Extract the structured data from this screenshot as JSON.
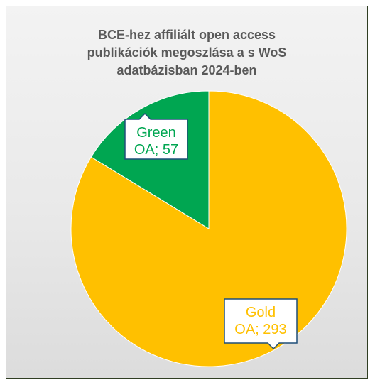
{
  "chart_data": {
    "type": "pie",
    "title_lines": [
      "BCE-hez affiliált open access",
      "publikációk megoszlása a s WoS",
      "adatbázisban 2024-ben"
    ],
    "slices": [
      {
        "label": "Gold OA",
        "value": 293,
        "color": "#ffc000",
        "label_lines": [
          "Gold",
          "OA; 293"
        ]
      },
      {
        "label": "Green OA",
        "value": 57,
        "color": "#00a651",
        "label_lines": [
          "Green",
          "OA; 57"
        ]
      }
    ],
    "legend": "none"
  }
}
